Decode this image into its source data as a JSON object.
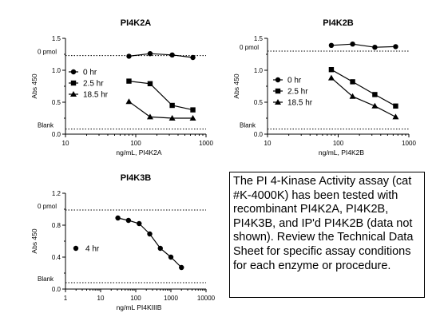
{
  "info_text": "The  PI 4-Kinase Activity assay (cat #K-4000K) has been tested with recombinant PI4K2A, PI4K2B,  PI4K3B, and IP'd PI4K2B  (data not shown). Review the Technical Data Sheet for specific assay conditions for each enzyme or procedure.",
  "chart_data": [
    {
      "type": "line",
      "title": "PI4K2A",
      "xlabel": "ng/mL,  PI4K2A",
      "ylabel": "Abs 450",
      "xscale": "log",
      "xlim": [
        10,
        1000
      ],
      "ylim": [
        0,
        1.5
      ],
      "xticks": [
        "10",
        "100",
        "1000"
      ],
      "yticks": [
        "0.0",
        "0.5",
        "1.0",
        "1.5"
      ],
      "reference_lines": [
        {
          "label": "0 pmol",
          "y": 1.23
        },
        {
          "label": "Blank",
          "y": 0.08
        }
      ],
      "legend_position": "left",
      "series": [
        {
          "name": "0 hr",
          "marker": "circle",
          "x": [
            80,
            160,
            330,
            650
          ],
          "y": [
            1.22,
            1.26,
            1.24,
            1.2
          ]
        },
        {
          "name": "2.5 hr",
          "marker": "square",
          "x": [
            80,
            160,
            330,
            650
          ],
          "y": [
            0.83,
            0.79,
            0.45,
            0.38
          ]
        },
        {
          "name": "18.5 hr",
          "marker": "triangle",
          "x": [
            80,
            160,
            330,
            650
          ],
          "y": [
            0.51,
            0.27,
            0.25,
            0.25
          ]
        }
      ]
    },
    {
      "type": "line",
      "title": "PI4K2B",
      "xlabel": "ng/mL,  PI4K2B",
      "ylabel": "Abs 450",
      "xscale": "log",
      "xlim": [
        10,
        1000
      ],
      "ylim": [
        0,
        1.5
      ],
      "xticks": [
        "10",
        "100",
        "1000"
      ],
      "yticks": [
        "0.0",
        "0.5",
        "1.0",
        "1.5"
      ],
      "reference_lines": [
        {
          "label": "0 pmol",
          "y": 1.3
        },
        {
          "label": "Blank",
          "y": 0.08
        }
      ],
      "legend_position": "left",
      "series": [
        {
          "name": "0 hr",
          "marker": "circle",
          "x": [
            80,
            160,
            330,
            650
          ],
          "y": [
            1.39,
            1.41,
            1.36,
            1.37
          ]
        },
        {
          "name": "2.5 hr",
          "marker": "square",
          "x": [
            80,
            160,
            330,
            650
          ],
          "y": [
            1.01,
            0.82,
            0.62,
            0.44
          ]
        },
        {
          "name": "18.5 hr",
          "marker": "triangle",
          "x": [
            80,
            160,
            330,
            650
          ],
          "y": [
            0.88,
            0.59,
            0.44,
            0.27
          ]
        }
      ]
    },
    {
      "type": "line",
      "title": "PI4K3B",
      "xlabel": "ng/mL  PI4KIIIB",
      "ylabel": "Abs 450",
      "xscale": "log",
      "xlim": [
        1,
        10000
      ],
      "ylim": [
        0,
        1.2
      ],
      "xticks": [
        "1",
        "10",
        "100",
        "1000",
        "10000"
      ],
      "yticks": [
        "0.0",
        "0.4",
        "0.8",
        "1.2"
      ],
      "reference_lines": [
        {
          "label": "0 pmol",
          "y": 0.99
        },
        {
          "label": "Blank",
          "y": 0.08
        }
      ],
      "legend_position": "left",
      "series": [
        {
          "name": "4 hr",
          "marker": "circle",
          "x": [
            31,
            62,
            125,
            250,
            500,
            1000,
            2000
          ],
          "y": [
            0.89,
            0.86,
            0.82,
            0.69,
            0.51,
            0.4,
            0.27
          ]
        }
      ]
    }
  ]
}
